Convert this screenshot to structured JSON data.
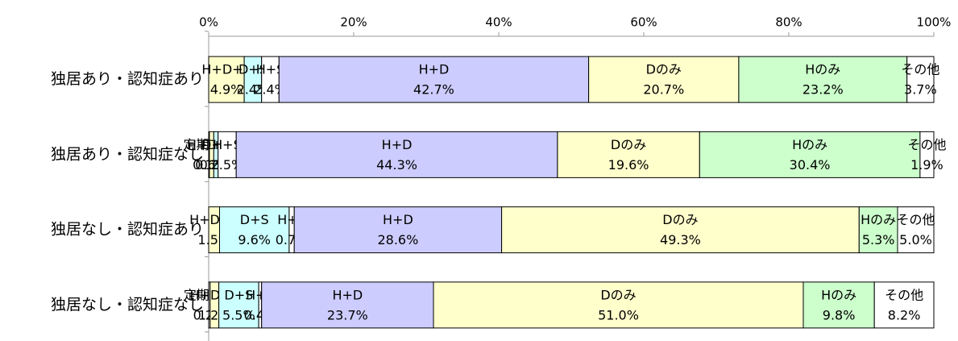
{
  "chart_data": {
    "type": "bar",
    "orientation": "horizontal",
    "stacked": true,
    "categories": [
      "独居あり・認知症あり",
      "独居あり・認知症なし",
      "独居なし・認知症あり",
      "独居なし・認知症なし"
    ],
    "series": [
      {
        "name": "定期巡回",
        "color": "#ffffff",
        "values": [
          null,
          0.1,
          null,
          0.2
        ],
        "value_labels": [
          null,
          "0.1%",
          null,
          "0.2%"
        ]
      },
      {
        "name": "H+D+S",
        "color": "#ffffcc",
        "values": [
          4.9,
          0.6,
          1.5,
          1.2
        ],
        "value_labels": [
          "4.9%",
          "0.6%",
          "1.5%",
          "1.2%"
        ]
      },
      {
        "name": "D+S",
        "color": "#ccffff",
        "values": [
          2.4,
          0.6,
          9.6,
          5.5
        ],
        "value_labels": [
          "2.4%",
          "0.6%",
          "9.6%",
          "5.5%"
        ]
      },
      {
        "name": "H+S",
        "color": "#ffffff",
        "values": [
          2.4,
          2.5,
          0.7,
          0.4
        ],
        "value_labels": [
          "2.4%",
          "2.5%",
          "0.7%",
          "0.4%"
        ]
      },
      {
        "name": "H+D",
        "color": "#ccccff",
        "values": [
          42.7,
          44.3,
          28.6,
          23.7
        ],
        "value_labels": [
          "42.7%",
          "44.3%",
          "28.6%",
          "23.7%"
        ]
      },
      {
        "name": "Dのみ",
        "color": "#ffffcc",
        "values": [
          20.7,
          19.6,
          49.3,
          51.0
        ],
        "value_labels": [
          "20.7%",
          "19.6%",
          "49.3%",
          "51.0%"
        ]
      },
      {
        "name": "Hのみ",
        "color": "#ccffcc",
        "values": [
          23.2,
          30.4,
          5.3,
          9.8
        ],
        "value_labels": [
          "23.2%",
          "30.4%",
          "5.3%",
          "9.8%"
        ]
      },
      {
        "name": "その他",
        "color": "#ffffff",
        "values": [
          3.7,
          1.9,
          5.0,
          8.2
        ],
        "value_labels": [
          "3.7%",
          "1.9%",
          "5.0%",
          "8.2%"
        ]
      }
    ],
    "xlim": [
      0,
      100
    ],
    "xticks": [
      {
        "value": 0,
        "label": "0%"
      },
      {
        "value": 20,
        "label": "20%"
      },
      {
        "value": 40,
        "label": "40%"
      },
      {
        "value": 60,
        "label": "60%"
      },
      {
        "value": 80,
        "label": "80%"
      },
      {
        "value": 100,
        "label": "100%"
      }
    ]
  }
}
